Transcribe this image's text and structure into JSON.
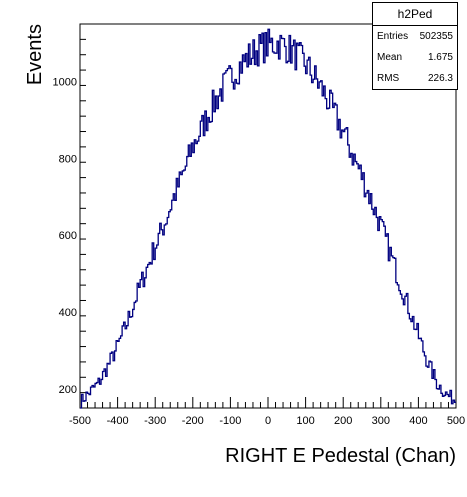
{
  "chart_data": {
    "type": "histogram",
    "x_range": [
      -500,
      500
    ],
    "y_range": [
      150,
      1150
    ],
    "x_ticks": [
      -500,
      -400,
      -300,
      -200,
      -100,
      0,
      100,
      200,
      300,
      400,
      500
    ],
    "y_ticks": [
      200,
      400,
      600,
      800,
      1000
    ],
    "xlabel": "RIGHT E Pedestal (Chan)",
    "ylabel": "Events",
    "line_color": "#000080",
    "legend_placement": "top-right",
    "grid": false,
    "series": [
      {
        "x": [
          -500,
          -475,
          -450,
          -425,
          -400,
          -375,
          -350,
          -325,
          -300,
          -275,
          -250,
          -225,
          -200,
          -175,
          -150,
          -125,
          -100,
          -75,
          -50,
          -25,
          0,
          25,
          50,
          75,
          100,
          125,
          150,
          175,
          200,
          225,
          250,
          275,
          300,
          325,
          350,
          375,
          400,
          425,
          450,
          475,
          500
        ],
        "y": [
          165,
          190,
          215,
          260,
          310,
          370,
          440,
          505,
          570,
          630,
          700,
          760,
          830,
          880,
          930,
          975,
          1010,
          1040,
          1065,
          1085,
          1095,
          1100,
          1090,
          1070,
          1045,
          1010,
          970,
          920,
          870,
          810,
          755,
          690,
          625,
          555,
          480,
          410,
          340,
          270,
          215,
          185,
          170
        ]
      }
    ],
    "stats": {
      "name": "h2Ped",
      "rows": [
        {
          "label": "Entries",
          "value": "502355"
        },
        {
          "label": "Mean",
          "value": "1.675"
        },
        {
          "label": "RMS",
          "value": "226.3"
        }
      ]
    }
  }
}
